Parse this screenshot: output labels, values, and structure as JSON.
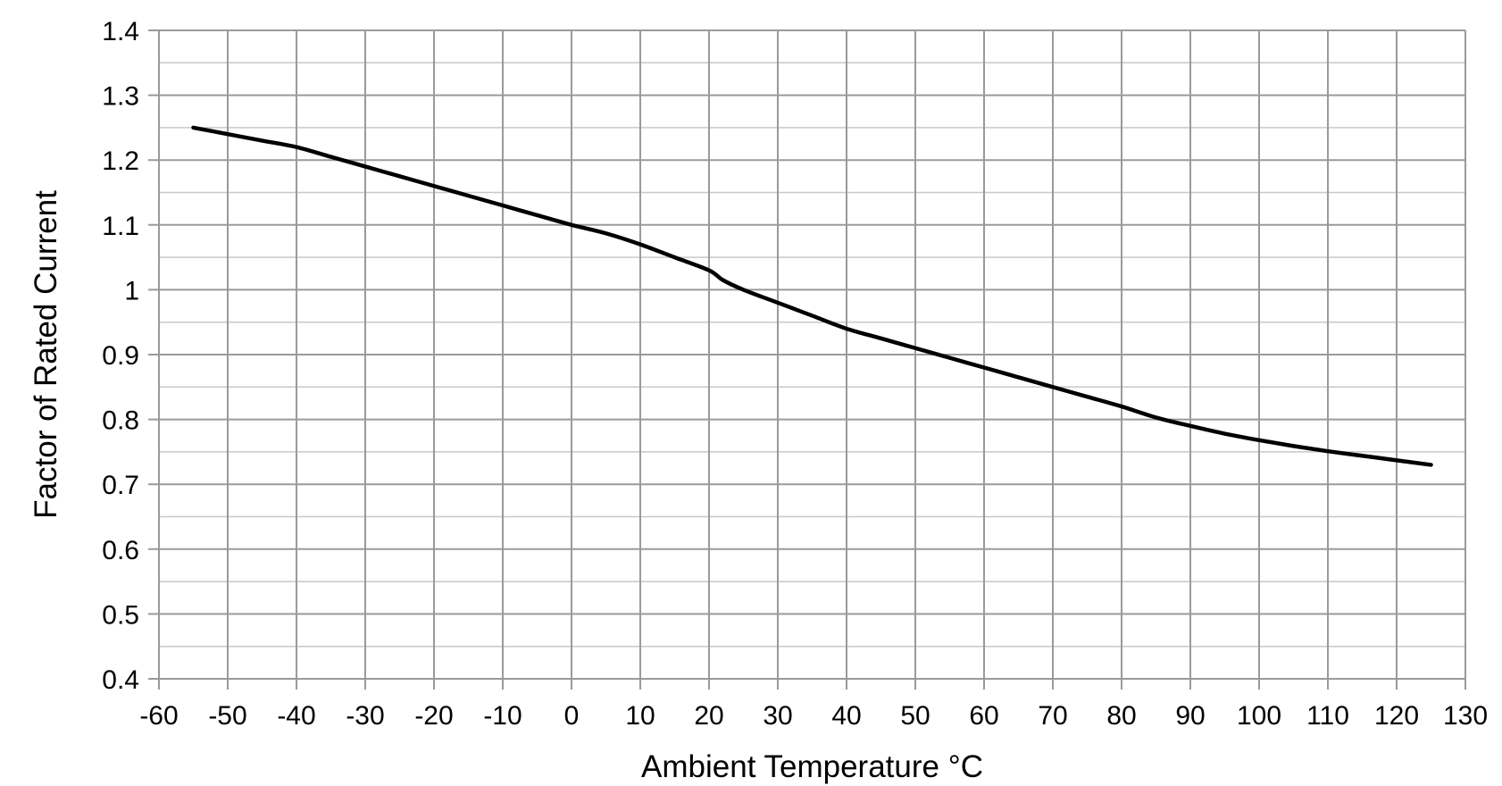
{
  "chart_data": {
    "type": "line",
    "title": "",
    "xlabel": "Ambient Temperature °C",
    "ylabel": "Factor of Rated Current",
    "xlim": [
      -60,
      130
    ],
    "ylim": [
      0.4,
      1.4
    ],
    "x_ticks": [
      -60,
      -50,
      -40,
      -30,
      -20,
      -10,
      0,
      10,
      20,
      30,
      40,
      50,
      60,
      70,
      80,
      90,
      100,
      110,
      120,
      130
    ],
    "y_ticks": [
      0.4,
      0.5,
      0.6,
      0.7,
      0.8,
      0.9,
      1,
      1.1,
      1.2,
      1.3,
      1.4
    ],
    "x_tick_labels": [
      "-60",
      "-50",
      "-40",
      "-30",
      "-20",
      "-10",
      "0",
      "10",
      "20",
      "30",
      "40",
      "50",
      "60",
      "70",
      "80",
      "90",
      "100",
      "110",
      "120",
      "130"
    ],
    "y_tick_labels": [
      "0.4",
      "0.5",
      "0.6",
      "0.7",
      "0.8",
      "0.9",
      "1",
      "1.1",
      "1.2",
      "1.3",
      "1.4"
    ],
    "grid": true,
    "minor_y_grid": true,
    "legend": "none",
    "line_color": "#000000",
    "grid_color": "#9a9a9a",
    "minor_grid_color": "#c8c8c8",
    "series": [
      {
        "x": [
          -55,
          -50,
          -45,
          -40,
          -35,
          -30,
          -25,
          -20,
          -15,
          -10,
          -5,
          0,
          5,
          10,
          15,
          20,
          22,
          25,
          30,
          35,
          40,
          45,
          50,
          55,
          60,
          65,
          70,
          75,
          80,
          85,
          90,
          95,
          100,
          105,
          110,
          115,
          120,
          125
        ],
        "y": [
          1.25,
          1.24,
          1.23,
          1.22,
          1.205,
          1.19,
          1.175,
          1.16,
          1.145,
          1.13,
          1.115,
          1.1,
          1.087,
          1.07,
          1.05,
          1.03,
          1.015,
          1.0,
          0.98,
          0.96,
          0.94,
          0.925,
          0.91,
          0.895,
          0.88,
          0.865,
          0.85,
          0.835,
          0.82,
          0.803,
          0.79,
          0.778,
          0.768,
          0.759,
          0.751,
          0.744,
          0.737,
          0.73
        ]
      }
    ]
  }
}
